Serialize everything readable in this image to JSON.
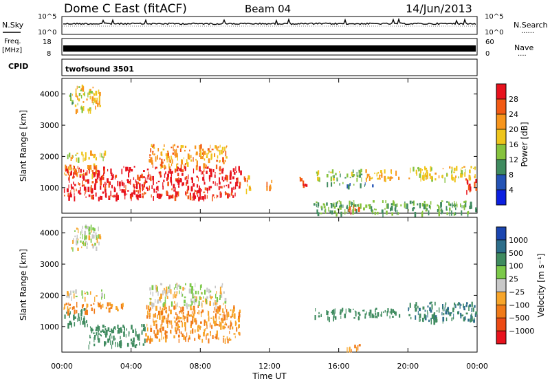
{
  "header": {
    "station": "Dome C East (fitACF)",
    "beam": "Beam 04",
    "date": "14/Jun/2013"
  },
  "aux": {
    "nsky_label": "N.Sky",
    "nsearch_label": "N.Search",
    "nsearch_dots": "......",
    "freq_label": "Freq.",
    "freq_unit": "[MHz]",
    "nave_label": "Nave",
    "nave_dots": "....",
    "cpid_label": "CPID",
    "cpid_value": "twofsound 3501",
    "noise_ticks_left": [
      "10^5",
      "10^0"
    ],
    "noise_ticks_right": [
      "10^5",
      "10^0"
    ],
    "freq_ticks": [
      "18",
      "8"
    ],
    "nave_ticks": [
      "60",
      "0"
    ]
  },
  "axes": {
    "ylabel": "Slant Range [km]",
    "y_ticks": [
      "4000",
      "3000",
      "2000",
      "1000"
    ],
    "x_ticks": [
      "00:00",
      "04:00",
      "08:00",
      "12:00",
      "16:00",
      "20:00",
      "00:00"
    ],
    "xlabel": "Time UT"
  },
  "power_scale": {
    "title": "Power [dB]",
    "ticks": [
      "28",
      "24",
      "20",
      "16",
      "12",
      "8",
      "4"
    ],
    "colors": [
      "#e8121d",
      "#f25a14",
      "#f7951c",
      "#eec51c",
      "#86c33e",
      "#3f8b5f",
      "#2453b5",
      "#0b1fe0"
    ]
  },
  "velocity_scale": {
    "title": "Velocity [m s⁻¹]",
    "ticks": [
      "1000",
      "500",
      "100",
      "25",
      "−25",
      "−100",
      "−500",
      "−1000"
    ],
    "colors": [
      "#1a45b0",
      "#2d6e8a",
      "#3f8b5f",
      "#7cc94a",
      "#c8c8c8",
      "#f7a52a",
      "#f07a18",
      "#ec4a14",
      "#e8121d"
    ]
  },
  "chart_data": {
    "type": "heatmap",
    "x_unit": "hours UT",
    "xlim": [
      0,
      24
    ],
    "ylim": [
      180,
      4500
    ],
    "range_unit": "km",
    "power_patches": [
      {
        "t": [
          0.1,
          10.3
        ],
        "r": [
          700,
          1700
        ],
        "v": 28
      },
      {
        "t": [
          0.1,
          2.0
        ],
        "r": [
          1400,
          1800
        ],
        "v": 20
      },
      {
        "t": [
          0.3,
          0.6
        ],
        "r": [
          3700,
          4200
        ],
        "v": 12
      },
      {
        "t": [
          0.7,
          2.2
        ],
        "r": [
          3500,
          4300
        ],
        "v": 16
      },
      {
        "t": [
          0.2,
          2.5
        ],
        "r": [
          1950,
          2200
        ],
        "v": 16
      },
      {
        "t": [
          5.0,
          9.5
        ],
        "r": [
          1700,
          2400
        ],
        "v": 20
      },
      {
        "t": [
          10.5,
          10.9
        ],
        "r": [
          900,
          1500
        ],
        "v": 20
      },
      {
        "t": [
          11.8,
          12.2
        ],
        "r": [
          1000,
          1300
        ],
        "v": 22
      },
      {
        "t": [
          13.7,
          14.1
        ],
        "r": [
          1000,
          1400
        ],
        "v": 24
      },
      {
        "t": [
          14.6,
          17.4
        ],
        "r": [
          1300,
          1600
        ],
        "v": 12
      },
      {
        "t": [
          15.2,
          18.0
        ],
        "r": [
          1100,
          1200
        ],
        "v": 8
      },
      {
        "t": [
          17.5,
          19.5
        ],
        "r": [
          1300,
          1600
        ],
        "v": 18
      },
      {
        "t": [
          20.0,
          23.9
        ],
        "r": [
          1300,
          1700
        ],
        "v": 16
      },
      {
        "t": [
          23.3,
          23.9
        ],
        "r": [
          900,
          1300
        ],
        "v": 26
      },
      {
        "t": [
          14.5,
          24.0
        ],
        "r": [
          200,
          600
        ],
        "v": 10
      },
      {
        "t": [
          16.4,
          17.2
        ],
        "r": [
          250,
          450
        ],
        "v": 26
      }
    ],
    "velocity_patches": [
      {
        "t": [
          0.1,
          1.4
        ],
        "r": [
          1100,
          1600
        ],
        "v": 200
      },
      {
        "t": [
          0.1,
          3.7
        ],
        "r": [
          1500,
          1800
        ],
        "v": -100
      },
      {
        "t": [
          1.4,
          4.8
        ],
        "r": [
          400,
          1100
        ],
        "v": 200
      },
      {
        "t": [
          4.8,
          10.3
        ],
        "r": [
          600,
          1700
        ],
        "v": -100
      },
      {
        "t": [
          0.2,
          2.5
        ],
        "r": [
          1950,
          2200
        ],
        "v": 0
      },
      {
        "t": [
          5.0,
          9.5
        ],
        "r": [
          1700,
          2400
        ],
        "v": 0
      },
      {
        "t": [
          0.5,
          2.2
        ],
        "r": [
          3500,
          4300
        ],
        "v": 0
      },
      {
        "t": [
          14.6,
          19.5
        ],
        "r": [
          1300,
          1600
        ],
        "v": 200
      },
      {
        "t": [
          20.0,
          23.9
        ],
        "r": [
          1200,
          1800
        ],
        "v": 500
      },
      {
        "t": [
          16.4,
          17.2
        ],
        "r": [
          250,
          450
        ],
        "v": -100
      }
    ]
  }
}
